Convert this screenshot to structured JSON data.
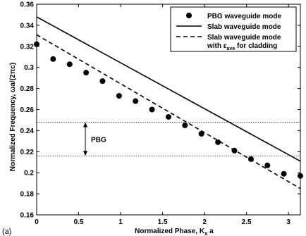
{
  "chart_data": {
    "type": "scatter",
    "panel_label": "(a)",
    "xlabel_main": "Normalized Phase, K",
    "xlabel_sub": "x",
    "xlabel_tail": " a",
    "ylabel": "Normalized Frequency, ωa/(2πc)",
    "xlim": [
      0,
      3.14159
    ],
    "ylim": [
      0.16,
      0.36
    ],
    "x_ticks": [
      0,
      0.5,
      1,
      1.5,
      2,
      2.5,
      3
    ],
    "x_tick_labels": [
      "0",
      "0.5",
      "1",
      "1.5",
      "2",
      "2.5",
      "3"
    ],
    "y_ticks": [
      0.16,
      0.18,
      0.2,
      0.22,
      0.24,
      0.26,
      0.28,
      0.3,
      0.32,
      0.34,
      0.36
    ],
    "y_tick_labels": [
      "0.16",
      "0.18",
      "0.2",
      "0.22",
      "0.24",
      "0.26",
      "0.28",
      "0.3",
      "0.32",
      "0.34",
      "0.36"
    ],
    "grid": false,
    "legend_position": "top-right",
    "series": [
      {
        "name": "PBG waveguide mode",
        "kind": "markers",
        "x": [
          0,
          0.196,
          0.393,
          0.589,
          0.785,
          0.982,
          1.178,
          1.374,
          1.571,
          1.767,
          1.963,
          2.16,
          2.356,
          2.553,
          2.749,
          2.945,
          3.14159
        ],
        "y": [
          0.322,
          0.308,
          0.303,
          0.295,
          0.287,
          0.273,
          0.268,
          0.26,
          0.253,
          0.245,
          0.237,
          0.229,
          0.221,
          0.213,
          0.207,
          0.199,
          0.197
        ]
      },
      {
        "name": "Slab waveguide mode",
        "kind": "solid",
        "x": [
          0,
          3.14159
        ],
        "y": [
          0.348,
          0.211
        ]
      },
      {
        "name": "Slab waveguide mode",
        "name_line2": "with ε",
        "name_line2_sub": "ave",
        "name_line2_tail": " for cladding",
        "kind": "dashed",
        "x": [
          0,
          3.14159
        ],
        "y": [
          0.331,
          0.185
        ]
      }
    ],
    "reference_lines": [
      {
        "y": 0.248,
        "style": "dotted"
      },
      {
        "y": 0.216,
        "style": "dotted"
      }
    ],
    "annotations": [
      {
        "text": "PBG",
        "x": 0.58,
        "y_top": 0.248,
        "y_bottom": 0.216
      }
    ]
  }
}
